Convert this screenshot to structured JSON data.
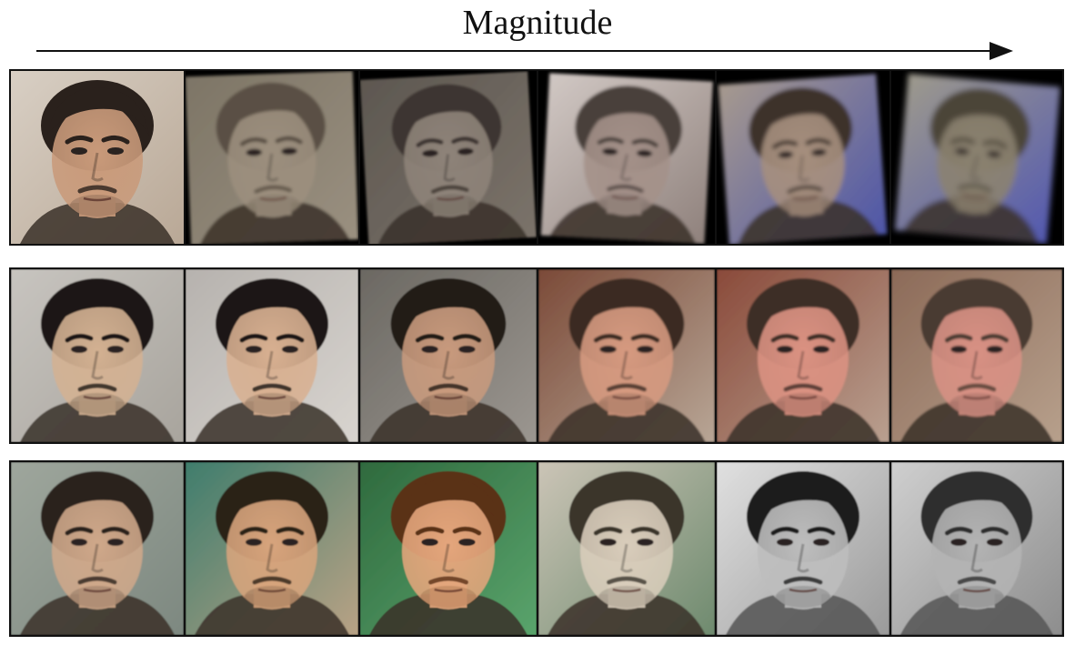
{
  "figure": {
    "axis_label": "Magnitude"
  },
  "rows": [
    {
      "name": "geometric-row",
      "cells": [
        {
          "skin": "#c99a7a",
          "hair": "#2a211c",
          "bg": "#d8cfc4",
          "bg2": "#b9a896",
          "blur": 0,
          "rot": 0,
          "warp": 0,
          "mono": 0
        },
        {
          "skin": "#9c8f7e",
          "hair": "#5a5044",
          "bg": "#7d7566",
          "bg2": "#9a9080",
          "blur": 1.6,
          "rot": -2,
          "warp": 0.05,
          "mono": 0.4
        },
        {
          "skin": "#8e8379",
          "hair": "#3d3630",
          "bg": "#5d5750",
          "bg2": "#7b736a",
          "blur": 1.4,
          "rot": -3,
          "warp": 0.08,
          "mono": 0.3
        },
        {
          "skin": "#a49189",
          "hair": "#4a403b",
          "bg": "#d1c8c4",
          "bg2": "#8f817c",
          "blur": 1.8,
          "rot": 3,
          "warp": 0.12,
          "mono": 0.2
        },
        {
          "skin": "#a68f7e",
          "hair": "#3d332c",
          "bg": "#a79a8e",
          "bg2": "#4d55a8",
          "blur": 2.4,
          "rot": -4,
          "warp": 0.14,
          "mono": 0.1
        },
        {
          "skin": "#8b8270",
          "hair": "#4b4539",
          "bg": "#9e9a8c",
          "bg2": "#5258b0",
          "blur": 3.2,
          "rot": 5,
          "warp": 0.18,
          "mono": 0.1
        }
      ]
    },
    {
      "name": "identity-row",
      "cells": [
        {
          "skin": "#d3b192",
          "hair": "#1e1915",
          "bg": "#c7c4bf",
          "bg2": "#a8a49d",
          "blur": 0.8,
          "rot": 0,
          "warp": 0,
          "mono": 0
        },
        {
          "skin": "#d8b091",
          "hair": "#1a1613",
          "bg": "#b6b2ae",
          "bg2": "#d8d4cf",
          "blur": 0.8,
          "rot": 0,
          "warp": 0,
          "mono": 0
        },
        {
          "skin": "#c89a7d",
          "hair": "#241c17",
          "bg": "#6b6862",
          "bg2": "#9b9690",
          "blur": 0.9,
          "rot": 0,
          "warp": 0,
          "mono": 0
        },
        {
          "skin": "#d69a80",
          "hair": "#3a2a22",
          "bg": "#7b4a38",
          "bg2": "#b8a696",
          "blur": 1.0,
          "rot": 0,
          "warp": 0,
          "mono": 0
        },
        {
          "skin": "#db9282",
          "hair": "#3e2d25",
          "bg": "#8a4a3a",
          "bg2": "#b9a090",
          "blur": 1.0,
          "rot": 0,
          "warp": 0,
          "mono": 0
        },
        {
          "skin": "#d89184",
          "hair": "#4a3a30",
          "bg": "#8c6a58",
          "bg2": "#b7a08c",
          "blur": 1.2,
          "rot": 0,
          "warp": 0,
          "mono": 0
        }
      ]
    },
    {
      "name": "color-row",
      "cells": [
        {
          "skin": "#cfa88a",
          "hair": "#2a211b",
          "bg": "#9ea69c",
          "bg2": "#7d8880",
          "blur": 0.8,
          "rot": 0,
          "warp": 0,
          "mono": 0
        },
        {
          "skin": "#d7a47c",
          "hair": "#2c2018",
          "bg": "#3f7d6c",
          "bg2": "#b9a285",
          "blur": 0.8,
          "rot": 0,
          "warp": 0,
          "mono": 0
        },
        {
          "skin": "#e4a67c",
          "hair": "#5a3018",
          "bg": "#2f6a3e",
          "bg2": "#5aa46c",
          "blur": 0.6,
          "rot": 0,
          "warp": 0,
          "mono": 0
        },
        {
          "skin": "#d9cdbb",
          "hair": "#3a342c",
          "bg": "#cbc4b6",
          "bg2": "#6e8a6e",
          "blur": 0.7,
          "rot": 0,
          "warp": 0,
          "mono": 0.7
        },
        {
          "skin": "#bdbdbd",
          "hair": "#1e1e1e",
          "bg": "#e0e0e0",
          "bg2": "#9a9a9a",
          "blur": 0.7,
          "rot": 0,
          "warp": 0,
          "mono": 1
        },
        {
          "skin": "#b3b3b3",
          "hair": "#2d2d2d",
          "bg": "#cfcfcf",
          "bg2": "#8d8d8d",
          "blur": 0.9,
          "rot": 0,
          "warp": 0,
          "mono": 1
        }
      ]
    }
  ]
}
